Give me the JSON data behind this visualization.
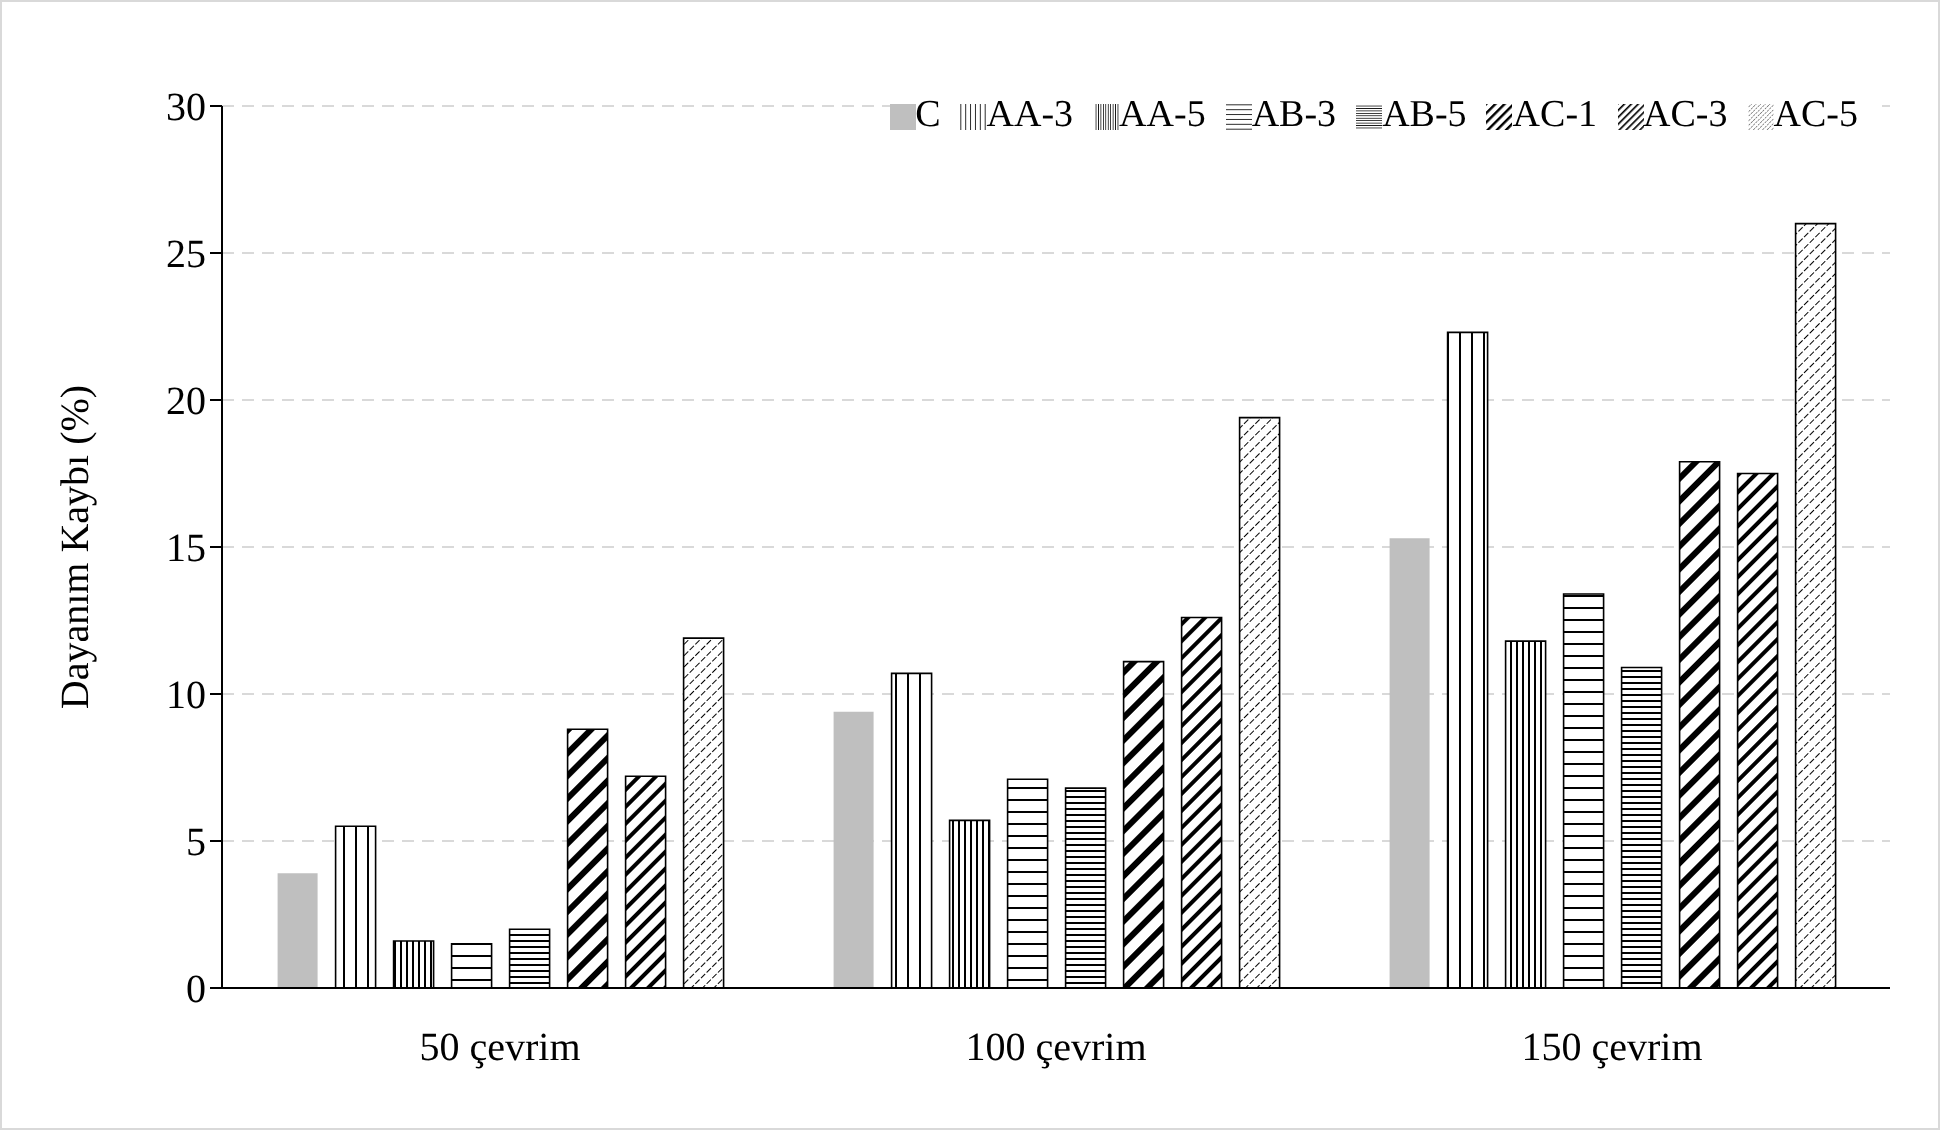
{
  "chart_data": {
    "type": "bar",
    "ylabel": "Dayanım Kaybı (%)",
    "categories": [
      "50 çevrim",
      "100 çevrim",
      "150 çevrim"
    ],
    "series": [
      {
        "name": "C",
        "color": "#bfbfbf",
        "values": [
          3.9,
          9.4,
          15.3
        ]
      },
      {
        "name": "AA-3",
        "color": "#000000",
        "values": [
          5.5,
          10.7,
          22.3
        ]
      },
      {
        "name": "AA-5",
        "color": "#000000",
        "values": [
          1.6,
          5.7,
          11.8
        ]
      },
      {
        "name": "AB-3",
        "color": "#000000",
        "values": [
          1.5,
          7.1,
          13.4
        ]
      },
      {
        "name": "AB-5",
        "color": "#000000",
        "values": [
          2.0,
          6.8,
          10.9
        ]
      },
      {
        "name": "AC-1",
        "color": "#000000",
        "values": [
          8.8,
          11.1,
          17.9
        ]
      },
      {
        "name": "AC-3",
        "color": "#000000",
        "values": [
          7.2,
          12.6,
          17.5
        ]
      },
      {
        "name": "AC-5",
        "color": "#000000",
        "values": [
          11.9,
          19.4,
          26.0
        ]
      }
    ],
    "ylim": [
      0,
      30
    ],
    "yticks": [
      0,
      5,
      10,
      15,
      20,
      25,
      30
    ],
    "grid": "y",
    "legend": "top right"
  }
}
